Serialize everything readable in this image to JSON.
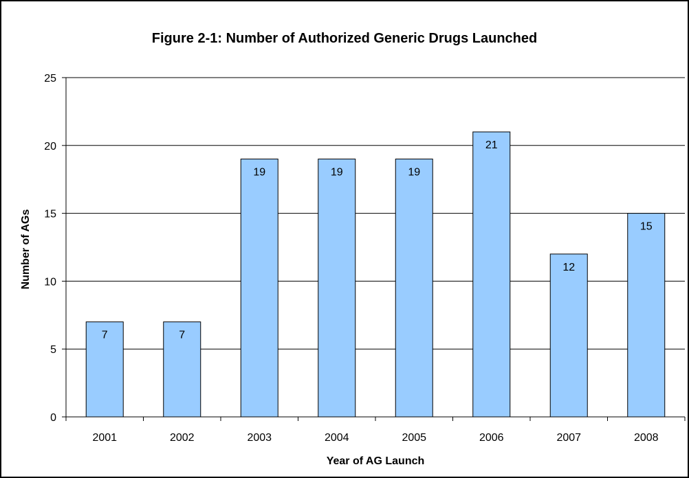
{
  "chart_data": {
    "type": "bar",
    "title": "Figure 2-1: Number of Authorized Generic Drugs Launched",
    "xlabel": "Year of AG Launch",
    "ylabel": "Number of AGs",
    "categories": [
      "2001",
      "2002",
      "2003",
      "2004",
      "2005",
      "2006",
      "2007",
      "2008"
    ],
    "values": [
      7,
      7,
      19,
      19,
      19,
      21,
      12,
      15
    ],
    "ylim": [
      0,
      25
    ],
    "yticks": [
      0,
      5,
      10,
      15,
      20,
      25
    ],
    "grid": true,
    "legend": "none",
    "data_labels": true,
    "colors": {
      "bar_fill": "#99ccff",
      "bar_stroke": "#000000",
      "grid": "#000000",
      "frame": "#000000"
    }
  }
}
